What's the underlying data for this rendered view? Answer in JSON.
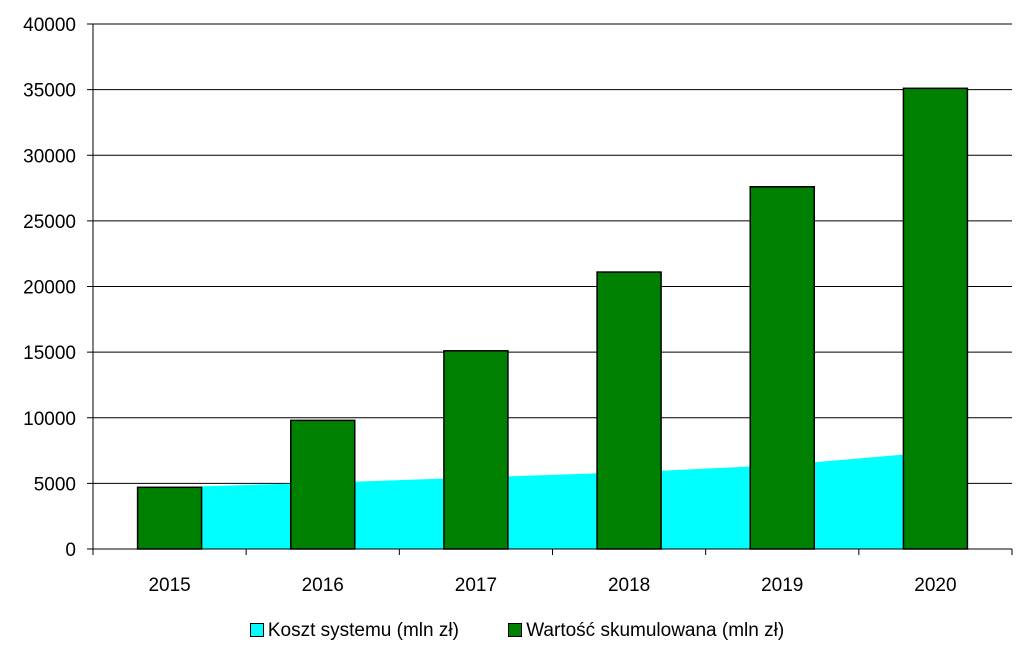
{
  "chart_data": {
    "type": "bar",
    "categories": [
      "2015",
      "2016",
      "2017",
      "2018",
      "2019",
      "2020"
    ],
    "series": [
      {
        "name": "Koszt systemu (mln zł)",
        "type": "area",
        "color": "#00ffff",
        "values": [
          4700,
          5050,
          5450,
          5850,
          6400,
          7400
        ]
      },
      {
        "name": "Wartość skumulowana (mln zł)",
        "type": "bar",
        "color": "#008000",
        "values": [
          4700,
          9800,
          15100,
          21100,
          27600,
          35100
        ]
      }
    ],
    "ylim": [
      0,
      40000
    ],
    "yticks": [
      "0",
      "5000",
      "10000",
      "15000",
      "20000",
      "25000",
      "30000",
      "35000",
      "40000"
    ],
    "grid": true,
    "legend": "bottom"
  }
}
